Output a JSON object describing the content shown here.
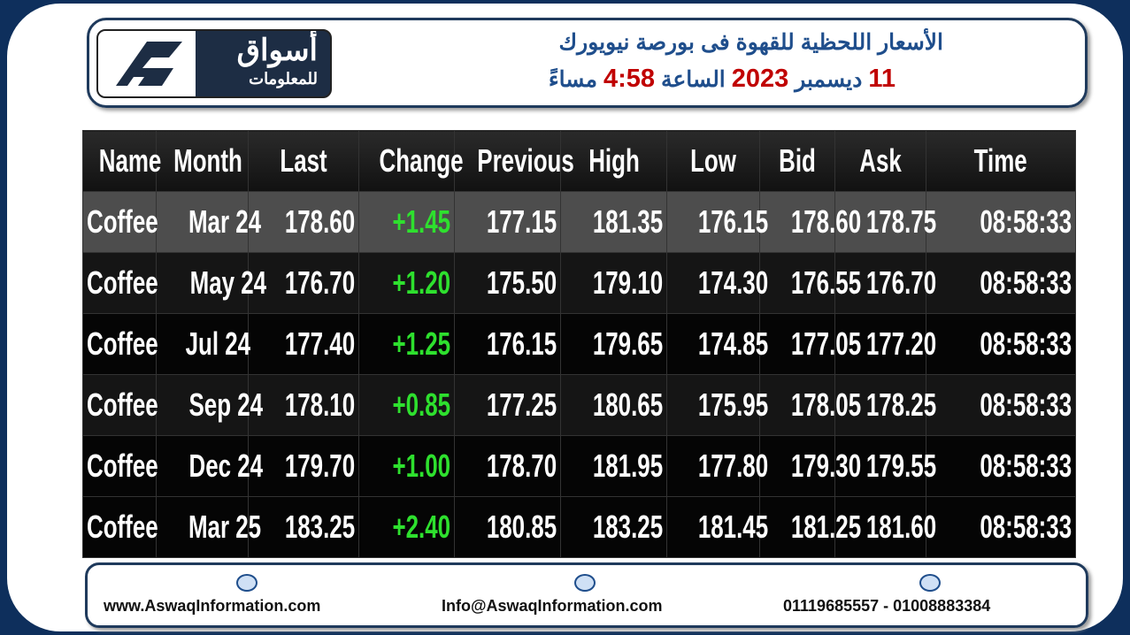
{
  "header": {
    "logo_title": "أسواق",
    "logo_subtitle": "للمعلومات",
    "title": "الأسعار اللحظية للقهوة فى بورصة نيويورك",
    "date_segments": [
      "11",
      "ديسمبر",
      "2023",
      "الساعة",
      "4:58",
      "مساءً"
    ]
  },
  "table": {
    "columns": [
      "Name",
      "Month",
      "Last",
      "Change",
      "Previous",
      "High",
      "Low",
      "Bid",
      "Ask",
      "Time"
    ],
    "rows": [
      [
        "Coffee",
        "Mar 24",
        "178.60",
        "+1.45",
        "177.15",
        "181.35",
        "176.15",
        "178.60",
        "178.75",
        "08:58:33"
      ],
      [
        "Coffee",
        "May 24",
        "176.70",
        "+1.20",
        "175.50",
        "179.10",
        "174.30",
        "176.55",
        "176.70",
        "08:58:33"
      ],
      [
        "Coffee",
        "Jul 24",
        "177.40",
        "+1.25",
        "176.15",
        "179.65",
        "174.85",
        "177.05",
        "177.20",
        "08:58:33"
      ],
      [
        "Coffee",
        "Sep 24",
        "178.10",
        "+0.85",
        "177.25",
        "180.65",
        "175.95",
        "178.05",
        "178.25",
        "08:58:33"
      ],
      [
        "Coffee",
        "Dec 24",
        "179.70",
        "+1.00",
        "178.70",
        "181.95",
        "177.80",
        "179.30",
        "179.55",
        "08:58:33"
      ],
      [
        "Coffee",
        "Mar 25",
        "183.25",
        "+2.40",
        "180.85",
        "183.25",
        "181.45",
        "181.25",
        "181.60",
        "08:58:33"
      ]
    ]
  },
  "footer": {
    "website": "www.AswaqInformation.com",
    "email": "Info@AswaqInformation.com",
    "phones": "01119685557 - 01008883384"
  }
}
